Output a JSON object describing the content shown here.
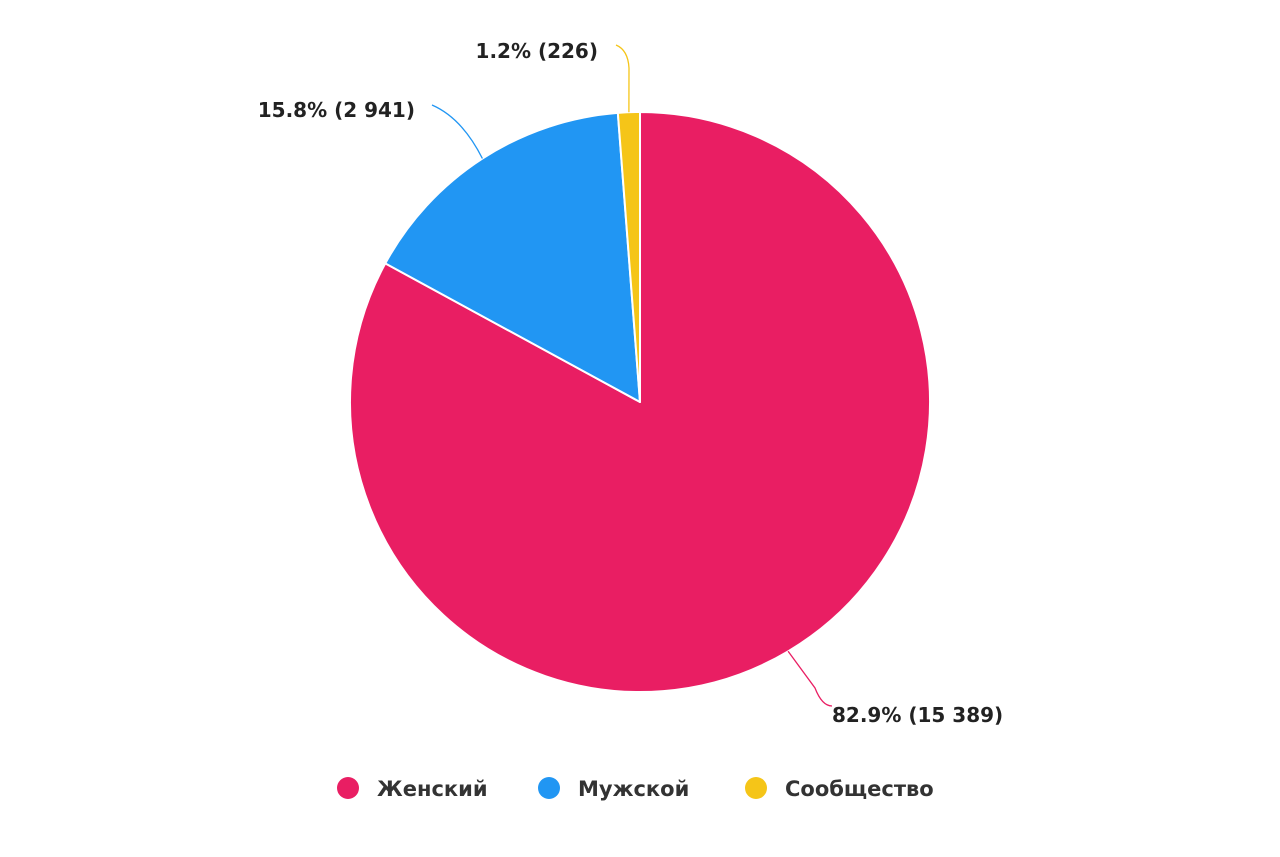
{
  "chart_data": {
    "type": "pie",
    "title": "",
    "start_angle_deg": 0,
    "direction": "clockwise",
    "legend_position": "bottom-center",
    "slices": [
      {
        "name": "Женский",
        "value": 15389,
        "percent": 82.9,
        "label": "82.9% (15 389)",
        "color": "#e91e63"
      },
      {
        "name": "Мужской",
        "value": 2941,
        "percent": 15.8,
        "label": "15.8% (2 941)",
        "color": "#2196f3"
      },
      {
        "name": "Сообщество",
        "value": 226,
        "percent": 1.2,
        "label": "1.2% (226)",
        "color": "#f5c518"
      }
    ]
  }
}
